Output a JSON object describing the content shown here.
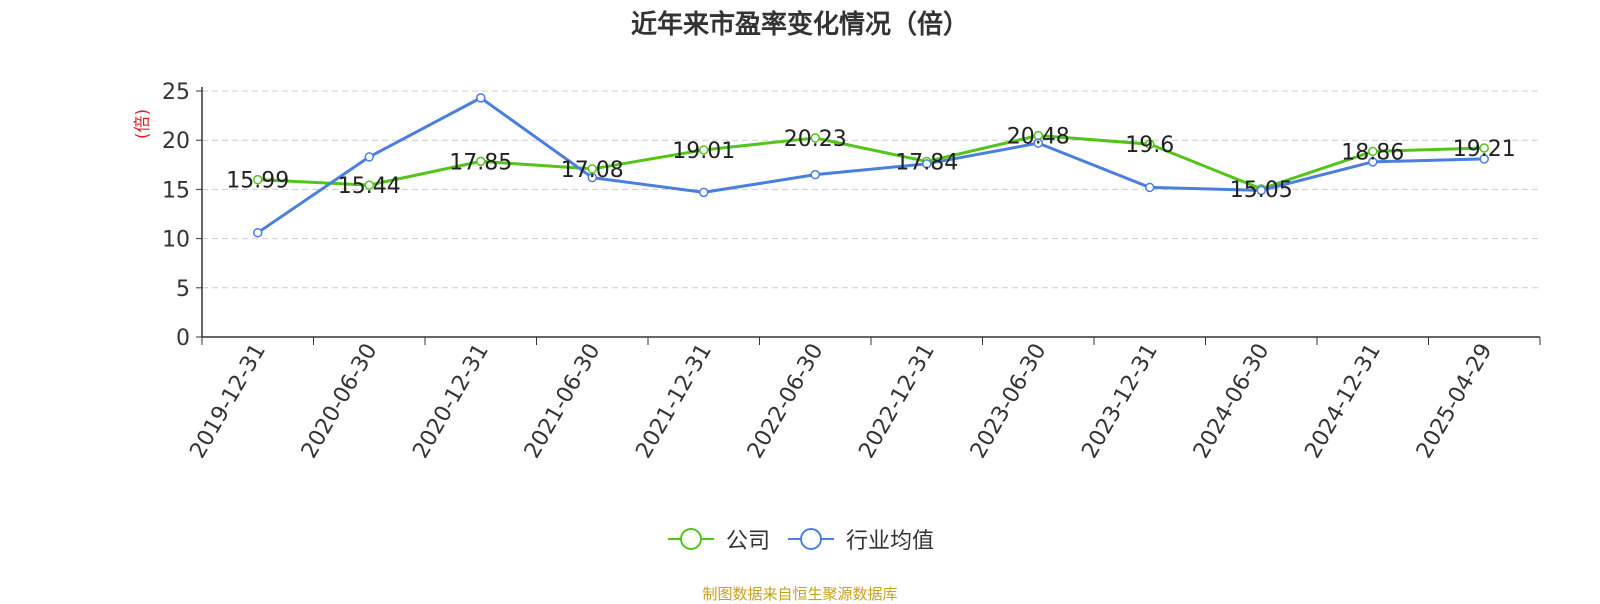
{
  "title": "近年来市盈率变化情况（倍）",
  "source": "制图数据来自恒生聚源数据库",
  "colors": {
    "company": "#52c41a",
    "industry": "#4a7fe0",
    "ylabel": "#e02020",
    "grid": "#cccccc",
    "axis": "#333333",
    "source": "#c9a01a"
  },
  "legend": {
    "company": "公司",
    "industry": "行业均值"
  },
  "chart_data": {
    "type": "line",
    "title": "近年来市盈率变化情况（倍）",
    "ylabel": "(倍)",
    "xlabel": "",
    "ylim": [
      0,
      25
    ],
    "yticks": [
      0,
      5,
      10,
      15,
      20,
      25
    ],
    "grid": true,
    "legend_position": "bottom",
    "categories": [
      "2019-12-31",
      "2020-06-30",
      "2020-12-31",
      "2021-06-30",
      "2021-12-31",
      "2022-06-30",
      "2022-12-31",
      "2023-06-30",
      "2023-12-31",
      "2024-06-30",
      "2024-12-31",
      "2025-04-29"
    ],
    "series": [
      {
        "name": "公司",
        "values": [
          15.99,
          15.44,
          17.85,
          17.08,
          19.01,
          20.23,
          17.84,
          20.48,
          19.6,
          15.05,
          18.86,
          19.21
        ],
        "labels": [
          "15.99",
          "15.44",
          "17.85",
          "17.08",
          "19.01",
          "20.23",
          "17.84",
          "20.48",
          "19.6",
          "15.05",
          "18.86",
          "19.21"
        ]
      },
      {
        "name": "行业均值",
        "values": [
          10.6,
          18.3,
          24.3,
          16.2,
          14.7,
          16.5,
          17.6,
          19.7,
          15.2,
          14.9,
          17.8,
          18.1
        ]
      }
    ]
  }
}
